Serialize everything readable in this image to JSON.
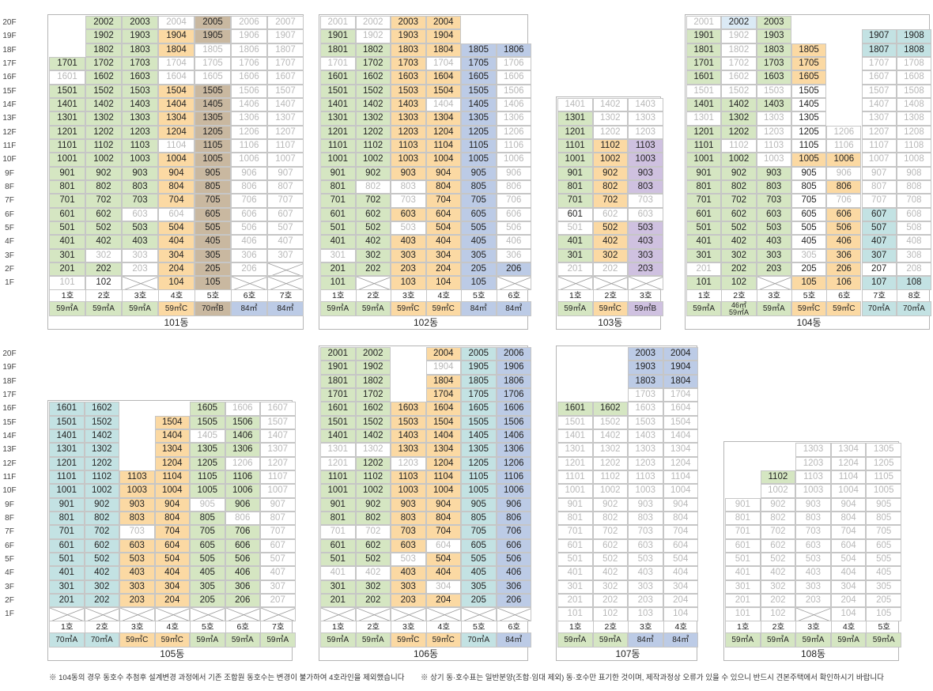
{
  "floors": [
    "20F",
    "19F",
    "18F",
    "17F",
    "16F",
    "15F",
    "14F",
    "13F",
    "12F",
    "11F",
    "10F",
    "9F",
    "8F",
    "7F",
    "6F",
    "5F",
    "4F",
    "3F",
    "2F",
    "1F"
  ],
  "colors": {
    "g": "#d5e6c2",
    "o": "#fbd9a3",
    "b": "#bccbe6",
    "t": "#c3e2e3",
    "p": "#cfc1e0",
    "br": "#c9b8a0",
    "lb": "#dbeaf5"
  },
  "notes": [
    "※ 104동의 경우 동호수 추첨후 설계변경 과정에서 기존 조합원 동호수는 변경이 불가하여 4호라인을 제외했습니다",
    "※ 상기 동·호수표는 일반분양(조합·임대 제외) 동·호수만 표기한 것이며, 제작과정상 오류가 있을 수 있으니 반드시 견본주택에서 확인하시기 바랍니다"
  ],
  "buildings": [
    {
      "name": "101동",
      "lines": [
        {
          "ho": "1호",
          "type": "59㎡A",
          "fill": "g",
          "top": 17,
          "overrides": {
            "16": "d",
            "1": "d"
          }
        },
        {
          "ho": "2호",
          "type": "59㎡A",
          "fill": "g",
          "top": 20,
          "overrides": {
            "3": "d",
            "1": "w"
          }
        },
        {
          "ho": "3호",
          "type": "59㎡A",
          "fill": "g",
          "top": 20,
          "overrides": {
            "6": "d",
            "3": "d",
            "2": "d",
            "1": "x"
          }
        },
        {
          "ho": "4호",
          "type": "59㎡C",
          "fill": "o",
          "top": 20,
          "overrides": {
            "20": "d",
            "17": "d",
            "16": "d",
            "11": "d",
            "6": "d"
          }
        },
        {
          "ho": "5호",
          "type": "70㎡B",
          "fill": "br",
          "top": 20,
          "overrides": {
            "18": "d",
            "17": "d",
            "16": "d"
          }
        },
        {
          "ho": "6호",
          "type": "84㎡",
          "fill": "b",
          "top": 20,
          "overrides": {
            "all": "d",
            "1": "x"
          }
        },
        {
          "ho": "7호",
          "type": "84㎡",
          "fill": "b",
          "top": 20,
          "overrides": {
            "all": "d",
            "2": "x",
            "1": "x"
          }
        }
      ]
    },
    {
      "name": "102동",
      "lines": [
        {
          "ho": "1호",
          "type": "59㎡A",
          "fill": "g",
          "top": 20,
          "overrides": {
            "20": "d",
            "17": "d",
            "3": "d"
          }
        },
        {
          "ho": "2호",
          "type": "59㎡A",
          "fill": "g",
          "top": 20,
          "overrides": {
            "20": "d",
            "19": "d",
            "8": "d",
            "1": "x"
          }
        },
        {
          "ho": "3호",
          "type": "59㎡C",
          "fill": "o",
          "top": 20,
          "overrides": {
            "8": "d",
            "7": "d",
            "5": "d"
          }
        },
        {
          "ho": "4호",
          "type": "59㎡C",
          "fill": "o",
          "top": 20,
          "overrides": {
            "17": "d",
            "14": "d"
          }
        },
        {
          "ho": "5호",
          "type": "84㎡",
          "fill": "b",
          "top": 18,
          "overrides": {}
        },
        {
          "ho": "6호",
          "type": "84㎡",
          "fill": "b",
          "top": 18,
          "overrides": {
            "17": "d",
            "16": "d",
            "15": "d",
            "14": "d",
            "13": "d",
            "12": "d",
            "11": "d",
            "10": "d",
            "9": "d",
            "8": "d",
            "7": "d",
            "6": "d",
            "5": "d",
            "4": "d",
            "3": "d",
            "1": "x"
          }
        }
      ]
    },
    {
      "name": "103동",
      "lines": [
        {
          "ho": "1호",
          "type": "59㎡A",
          "fill": "g",
          "top": 14,
          "overrides": {
            "14": "d",
            "6": "w",
            "5": "d",
            "2": "d",
            "1": "x"
          }
        },
        {
          "ho": "2호",
          "type": "59㎡C",
          "fill": "o",
          "top": 14,
          "overrides": {
            "14": "d",
            "13": "d",
            "12": "d",
            "6": "d",
            "2": "d",
            "1": "x"
          }
        },
        {
          "ho": "3호",
          "type": "59㎡B",
          "fill": "p",
          "top": 14,
          "overrides": {
            "14": "d",
            "13": "d",
            "12": "d",
            "7": "d",
            "6": "d",
            "1": "x"
          }
        }
      ]
    },
    {
      "name": "104동",
      "lines": [
        {
          "ho": "1호",
          "type": "59㎡A",
          "fill": "g",
          "top": 20,
          "overrides": {
            "20": "d",
            "15": "d",
            "13": "d",
            "2": "d"
          }
        },
        {
          "ho": "2호",
          "type": "46㎡/59㎡A",
          "fill": "g",
          "top": 20,
          "overrides": {
            "20": "lb",
            "19": "d",
            "18": "d",
            "17": "d",
            "16": "d",
            "15": "d",
            "11": "d"
          }
        },
        {
          "ho": "3호",
          "type": "59㎡A",
          "fill": "g",
          "top": 20,
          "overrides": {
            "15": "d",
            "13": "d",
            "12": "d",
            "11": "d",
            "10": "d",
            "1": "x"
          }
        },
        {
          "ho": "5호",
          "type": "59㎡C",
          "fill": "o",
          "top": 18,
          "overrides": {
            "15": "w",
            "14": "w",
            "13": "w",
            "12": "w",
            "11": "w",
            "9": "w",
            "8": "w",
            "7": "w",
            "6": "w",
            "5": "w",
            "4": "w",
            "3": "d",
            "2": "w"
          }
        },
        {
          "ho": "6호",
          "type": "59㎡C",
          "fill": "o",
          "top": 12,
          "overrides": {
            "12": "d",
            "11": "d",
            "9": "d",
            "7": "d"
          }
        },
        {
          "ho": "7호",
          "type": "70㎡A",
          "fill": "t",
          "top": 19,
          "overrides": {
            "17": "d",
            "16": "d",
            "15": "d",
            "14": "d",
            "13": "d",
            "12": "d",
            "11": "d",
            "10": "d",
            "9": "d",
            "8": "d",
            "7": "d",
            "2": "w"
          }
        },
        {
          "ho": "8호",
          "type": "70㎡A",
          "fill": "t",
          "top": 19,
          "overrides": {
            "17": "d",
            "16": "d",
            "15": "d",
            "14": "d",
            "13": "d",
            "12": "d",
            "11": "d",
            "10": "d",
            "9": "d",
            "8": "d",
            "7": "d",
            "6": "d",
            "5": "d",
            "4": "d",
            "3": "d",
            "2": "d"
          }
        }
      ]
    },
    {
      "name": "105동",
      "lines": [
        {
          "ho": "1호",
          "type": "70㎡A",
          "fill": "t",
          "top": 16,
          "overrides": {
            "1": "x"
          }
        },
        {
          "ho": "2호",
          "type": "70㎡A",
          "fill": "t",
          "top": 16,
          "overrides": {
            "1": "x"
          }
        },
        {
          "ho": "3호",
          "type": "59㎡C",
          "fill": "o",
          "top": 11,
          "overrides": {
            "7": "d",
            "1": "x"
          }
        },
        {
          "ho": "4호",
          "type": "59㎡C",
          "fill": "o",
          "top": 15,
          "overrides": {
            "1": "x"
          }
        },
        {
          "ho": "5호",
          "type": "59㎡A",
          "fill": "g",
          "top": 16,
          "overrides": {
            "14": "d",
            "9": "d",
            "1": "x"
          }
        },
        {
          "ho": "6호",
          "type": "59㎡A",
          "fill": "g",
          "top": 16,
          "overrides": {
            "16": "d",
            "12": "d",
            "8": "d",
            "1": "x"
          }
        },
        {
          "ho": "7호",
          "type": "59㎡A",
          "fill": "g",
          "top": 16,
          "overrides": {
            "all": "d",
            "1": "x"
          }
        }
      ]
    },
    {
      "name": "106동",
      "lines": [
        {
          "ho": "1호",
          "type": "59㎡A",
          "fill": "g",
          "top": 20,
          "overrides": {
            "13": "d",
            "12": "d",
            "7": "d",
            "4": "d",
            "1": "x"
          }
        },
        {
          "ho": "2호",
          "type": "59㎡A",
          "fill": "g",
          "top": 20,
          "overrides": {
            "13": "d",
            "7": "d",
            "4": "d",
            "1": "x"
          }
        },
        {
          "ho": "3호",
          "type": "59㎡C",
          "fill": "o",
          "top": 16,
          "overrides": {
            "12": "d",
            "5": "d",
            "1": "x"
          }
        },
        {
          "ho": "4호",
          "type": "59㎡C",
          "fill": "o",
          "top": 20,
          "overrides": {
            "19": "d",
            "6": "d",
            "3": "d",
            "1": "x"
          }
        },
        {
          "ho": "5호",
          "type": "70㎡A",
          "fill": "t",
          "top": 20,
          "overrides": {
            "1": "x"
          }
        },
        {
          "ho": "6호",
          "type": "84㎡",
          "fill": "b",
          "top": 20,
          "overrides": {
            "1": "x"
          }
        }
      ]
    },
    {
      "name": "107동",
      "lines": [
        {
          "ho": "1호",
          "type": "59㎡A",
          "fill": "g",
          "top": 16,
          "overrides": {
            "all": "d",
            "16": "g"
          }
        },
        {
          "ho": "2호",
          "type": "59㎡A",
          "fill": "g",
          "top": 16,
          "overrides": {
            "all": "d",
            "16": "g"
          }
        },
        {
          "ho": "3호",
          "type": "84㎡",
          "fill": "b",
          "top": 20,
          "overrides": {
            "all": "d",
            "20": "b",
            "19": "b",
            "18": "b"
          }
        },
        {
          "ho": "4호",
          "type": "84㎡",
          "fill": "b",
          "top": 20,
          "overrides": {
            "all": "d",
            "20": "b",
            "19": "b",
            "18": "b"
          }
        }
      ]
    },
    {
      "name": "108동",
      "lines": [
        {
          "ho": "1호",
          "type": "59㎡A",
          "fill": "g",
          "top": 9,
          "overrides": {
            "all": "d"
          }
        },
        {
          "ho": "2호",
          "type": "59㎡A",
          "fill": "g",
          "top": 11,
          "overrides": {
            "all": "d",
            "11": "g"
          }
        },
        {
          "ho": "3호",
          "type": "59㎡A",
          "fill": "g",
          "top": 13,
          "overrides": {
            "all": "d",
            "1": "x"
          }
        },
        {
          "ho": "4호",
          "type": "59㎡A",
          "fill": "g",
          "top": 13,
          "overrides": {
            "all": "d"
          }
        },
        {
          "ho": "5호",
          "type": "59㎡A",
          "fill": "g",
          "top": 13,
          "overrides": {
            "all": "d"
          }
        }
      ]
    }
  ]
}
